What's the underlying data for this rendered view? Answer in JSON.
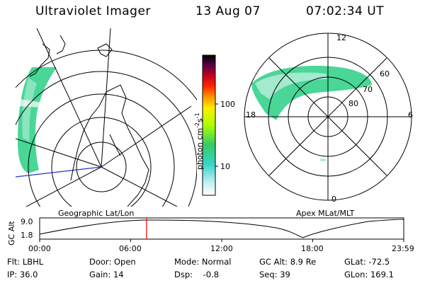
{
  "header": {
    "instrument": "Ultraviolet Imager",
    "date": "13 Aug 07",
    "time": "07:02:34 UT"
  },
  "geo_map": {
    "label": "Geographic Lat/Lon"
  },
  "apex_map": {
    "label": "Apex MLat/MLT",
    "mlt_labels": [
      "12",
      "18",
      "6",
      "0"
    ],
    "mlat_labels": [
      "60",
      "70",
      "80"
    ]
  },
  "colorbar": {
    "unit_prefix": "photon cm",
    "unit_exp1": "-2",
    "unit_mid": "s",
    "unit_exp2": "-1",
    "ticks": [
      "100",
      "10"
    ]
  },
  "altitude_plot": {
    "ylabel": "GC Alt",
    "yticks": [
      "9.0",
      "1.8"
    ],
    "xticks": [
      "00:00",
      "06:00",
      "12:00",
      "18:00",
      "23:59"
    ],
    "current_time_fraction": 0.2934,
    "marker_color": "#ff0000"
  },
  "status": {
    "flt": "Flt: LBHL",
    "door": "Door: Open",
    "mode": "Mode: Normal",
    "gc_alt": "GC Alt: 8.9 Re",
    "glat": "GLat: -72.5",
    "ip": "IP: 36.0",
    "gain": "Gain: 14",
    "dsp": "Dsp:    -0.8",
    "seq": "Seq: 39",
    "glon": "GLon: 169.1"
  }
}
